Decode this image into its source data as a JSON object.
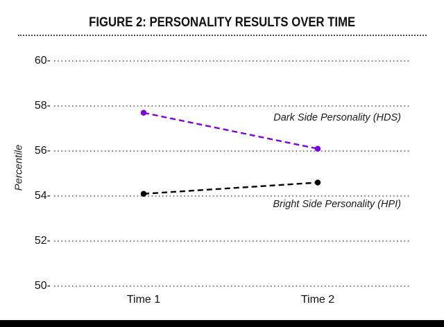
{
  "chart_data": {
    "type": "line",
    "title": "FIGURE 2: PERSONALITY RESULTS OVER TIME",
    "categories": [
      "Time 1",
      "Time 2"
    ],
    "series": [
      {
        "name": "Dark Side Personality (HDS)",
        "values": [
          57.7,
          56.1
        ],
        "color": "#7B00E6",
        "line_style": "dashed",
        "marker": "dot"
      },
      {
        "name": "Bright Side Personality (HPI)",
        "values": [
          54.1,
          54.6
        ],
        "color": "#000000",
        "line_style": "dashed",
        "marker": "dot"
      }
    ],
    "xlabel": "",
    "ylabel": "Percentile",
    "ylim": [
      50,
      60
    ],
    "yticks": [
      60,
      58,
      56,
      54,
      52,
      50
    ],
    "ytick_suffix": "-",
    "grid": "horizontal dotted",
    "legend_position": "inline labels at right of lines"
  },
  "colors": {
    "grid_dot": "#404040",
    "title_rule": "#4a4a4a",
    "bottom_bar": "#000000",
    "text": "#111111"
  }
}
